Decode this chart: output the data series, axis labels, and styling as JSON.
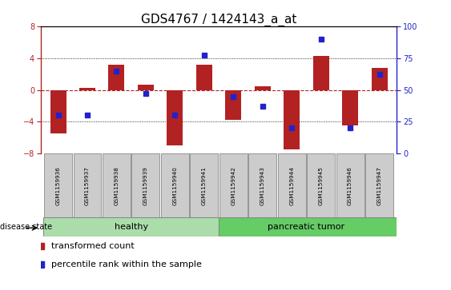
{
  "title": "GDS4767 / 1424143_a_at",
  "samples": [
    "GSM1159936",
    "GSM1159937",
    "GSM1159938",
    "GSM1159939",
    "GSM1159940",
    "GSM1159941",
    "GSM1159942",
    "GSM1159943",
    "GSM1159944",
    "GSM1159945",
    "GSM1159946",
    "GSM1159947"
  ],
  "bar_values": [
    -5.5,
    0.3,
    3.2,
    0.7,
    -7.0,
    3.2,
    -3.8,
    0.5,
    -7.5,
    4.3,
    -4.5,
    2.8
  ],
  "percentile_values": [
    30,
    30,
    65,
    47,
    30,
    77,
    45,
    37,
    20,
    90,
    20,
    62
  ],
  "ylim": [
    -8,
    8
  ],
  "y2lim": [
    0,
    100
  ],
  "y_ticks": [
    -8,
    -4,
    0,
    4,
    8
  ],
  "y2_ticks": [
    0,
    25,
    50,
    75,
    100
  ],
  "bar_color": "#b22222",
  "square_color": "#2222cc",
  "healthy_color": "#aaddaa",
  "tumor_color": "#66cc66",
  "bar_width": 0.55,
  "title_fontsize": 11,
  "tick_fontsize": 7,
  "legend_fontsize": 8,
  "healthy_label": "healthy",
  "tumor_label": "pancreatic tumor",
  "disease_state_label": "disease state",
  "legend_bar_label": "transformed count",
  "legend_sq_label": "percentile rank within the sample"
}
